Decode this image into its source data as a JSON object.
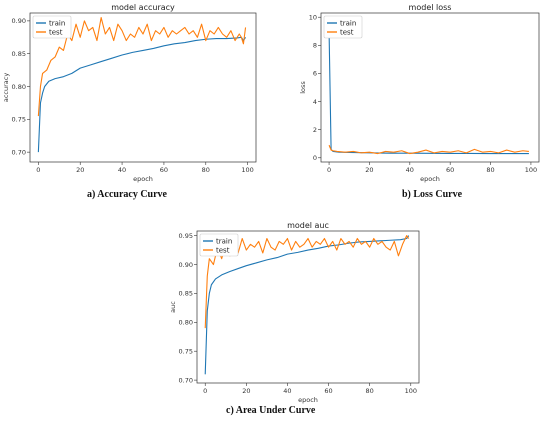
{
  "colors": {
    "train": "#1f77b4",
    "test": "#ff7f0e"
  },
  "captions": [
    "a) Accuracy Curve",
    "b) Loss Curve",
    "c) Area Under Curve"
  ],
  "chart_data": [
    {
      "type": "line",
      "title": "model accuracy",
      "xlabel": "epoch",
      "ylabel": "accuracy",
      "xlim": [
        -4,
        104
      ],
      "ylim": [
        0.685,
        0.912
      ],
      "xticks": [
        0,
        20,
        40,
        60,
        80,
        100
      ],
      "yticks": [
        0.7,
        0.75,
        0.8,
        0.85,
        0.9
      ],
      "ytick_labels": [
        "0.70",
        "0.75",
        "0.80",
        "0.85",
        "0.90"
      ],
      "legend": "top-left",
      "legend_entries": [
        "train",
        "test"
      ],
      "series": [
        {
          "name": "train",
          "color": "#1f77b4",
          "x": [
            0,
            1,
            2,
            3,
            5,
            8,
            12,
            16,
            20,
            25,
            30,
            35,
            40,
            45,
            50,
            55,
            60,
            65,
            70,
            75,
            80,
            85,
            90,
            95,
            97,
            98,
            99
          ],
          "y": [
            0.7,
            0.775,
            0.79,
            0.8,
            0.808,
            0.812,
            0.815,
            0.82,
            0.828,
            0.833,
            0.838,
            0.843,
            0.848,
            0.852,
            0.855,
            0.858,
            0.862,
            0.865,
            0.867,
            0.87,
            0.872,
            0.873,
            0.873,
            0.874,
            0.875,
            0.87,
            0.875
          ]
        },
        {
          "name": "test",
          "color": "#ff7f0e",
          "x": [
            0,
            1,
            2,
            4,
            6,
            8,
            10,
            12,
            14,
            16,
            18,
            20,
            22,
            24,
            26,
            28,
            30,
            32,
            34,
            36,
            38,
            40,
            42,
            44,
            46,
            48,
            50,
            52,
            54,
            56,
            58,
            60,
            62,
            64,
            66,
            68,
            70,
            72,
            74,
            76,
            78,
            80,
            82,
            84,
            86,
            88,
            90,
            92,
            94,
            96,
            97,
            98,
            99
          ],
          "y": [
            0.755,
            0.8,
            0.82,
            0.825,
            0.84,
            0.845,
            0.86,
            0.855,
            0.88,
            0.87,
            0.895,
            0.875,
            0.9,
            0.885,
            0.89,
            0.87,
            0.905,
            0.88,
            0.89,
            0.87,
            0.895,
            0.885,
            0.87,
            0.88,
            0.875,
            0.89,
            0.88,
            0.895,
            0.87,
            0.885,
            0.88,
            0.89,
            0.875,
            0.885,
            0.88,
            0.885,
            0.89,
            0.88,
            0.885,
            0.875,
            0.895,
            0.87,
            0.885,
            0.88,
            0.89,
            0.88,
            0.875,
            0.885,
            0.87,
            0.88,
            0.875,
            0.865,
            0.89
          ]
        }
      ]
    },
    {
      "type": "line",
      "title": "model loss",
      "xlabel": "epoch",
      "ylabel": "loss",
      "xlim": [
        -4,
        104
      ],
      "ylim": [
        -0.3,
        10.3
      ],
      "xticks": [
        0,
        20,
        40,
        60,
        80,
        100
      ],
      "yticks": [
        0,
        2,
        4,
        6,
        8,
        10
      ],
      "ytick_labels": [
        "0",
        "2",
        "4",
        "6",
        "8",
        "10"
      ],
      "legend": "top-left",
      "legend_entries": [
        "train",
        "test"
      ],
      "series": [
        {
          "name": "train",
          "color": "#1f77b4",
          "x": [
            0,
            1,
            2,
            5,
            10,
            20,
            30,
            40,
            50,
            60,
            70,
            80,
            90,
            99
          ],
          "y": [
            9.0,
            0.6,
            0.45,
            0.4,
            0.38,
            0.35,
            0.33,
            0.33,
            0.32,
            0.31,
            0.31,
            0.3,
            0.3,
            0.3
          ]
        },
        {
          "name": "test",
          "color": "#ff7f0e",
          "x": [
            0,
            1,
            2,
            4,
            8,
            12,
            16,
            20,
            24,
            28,
            32,
            36,
            40,
            44,
            48,
            52,
            56,
            60,
            64,
            68,
            72,
            76,
            80,
            84,
            88,
            92,
            96,
            99
          ],
          "y": [
            0.9,
            0.55,
            0.5,
            0.45,
            0.4,
            0.45,
            0.35,
            0.4,
            0.3,
            0.45,
            0.4,
            0.5,
            0.3,
            0.4,
            0.55,
            0.35,
            0.45,
            0.4,
            0.5,
            0.35,
            0.6,
            0.4,
            0.45,
            0.35,
            0.55,
            0.4,
            0.5,
            0.45
          ]
        }
      ]
    },
    {
      "type": "line",
      "title": "model auc",
      "xlabel": "epoch",
      "ylabel": "auc",
      "xlim": [
        -4,
        104
      ],
      "ylim": [
        0.695,
        0.958
      ],
      "xticks": [
        0,
        20,
        40,
        60,
        80,
        100
      ],
      "yticks": [
        0.7,
        0.75,
        0.8,
        0.85,
        0.9,
        0.95
      ],
      "ytick_labels": [
        "0.70",
        "0.75",
        "0.80",
        "0.85",
        "0.90",
        "0.95"
      ],
      "legend": "top-left",
      "legend_entries": [
        "train",
        "test"
      ],
      "series": [
        {
          "name": "train",
          "color": "#1f77b4",
          "x": [
            0,
            1,
            2,
            3,
            5,
            8,
            12,
            16,
            20,
            25,
            30,
            35,
            40,
            45,
            50,
            55,
            60,
            65,
            70,
            75,
            80,
            85,
            90,
            95,
            98,
            99
          ],
          "y": [
            0.71,
            0.82,
            0.85,
            0.865,
            0.875,
            0.882,
            0.888,
            0.893,
            0.898,
            0.903,
            0.908,
            0.912,
            0.918,
            0.921,
            0.925,
            0.928,
            0.932,
            0.934,
            0.937,
            0.939,
            0.94,
            0.941,
            0.942,
            0.943,
            0.945,
            0.95
          ]
        },
        {
          "name": "test",
          "color": "#ff7f0e",
          "x": [
            0,
            1,
            2,
            4,
            6,
            8,
            10,
            12,
            14,
            16,
            18,
            20,
            22,
            24,
            26,
            28,
            30,
            32,
            34,
            36,
            38,
            40,
            42,
            44,
            46,
            48,
            50,
            52,
            54,
            56,
            58,
            60,
            62,
            64,
            66,
            68,
            70,
            72,
            74,
            76,
            78,
            80,
            82,
            84,
            86,
            88,
            90,
            92,
            94,
            96,
            98,
            99
          ],
          "y": [
            0.79,
            0.88,
            0.91,
            0.9,
            0.93,
            0.91,
            0.935,
            0.915,
            0.94,
            0.92,
            0.945,
            0.925,
            0.935,
            0.93,
            0.94,
            0.92,
            0.945,
            0.93,
            0.925,
            0.94,
            0.935,
            0.945,
            0.925,
            0.94,
            0.93,
            0.935,
            0.945,
            0.93,
            0.94,
            0.935,
            0.945,
            0.93,
            0.94,
            0.925,
            0.945,
            0.935,
            0.94,
            0.93,
            0.945,
            0.935,
            0.94,
            0.93,
            0.945,
            0.935,
            0.94,
            0.93,
            0.925,
            0.94,
            0.915,
            0.935,
            0.95,
            0.945
          ]
        }
      ]
    }
  ]
}
